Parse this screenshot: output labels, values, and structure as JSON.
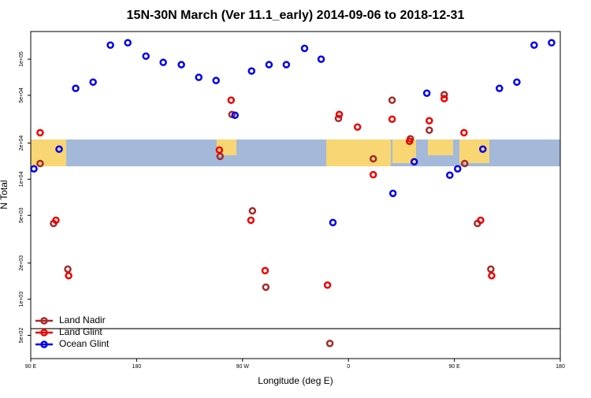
{
  "chart_data": {
    "type": "scatter",
    "title": "15N-30N March (Ver 11.1_early)   2014-09-06 to 2018-12-31",
    "x_label": "Longitude (deg E)",
    "y_label": "N Total",
    "xlim": [
      90,
      540
    ],
    "xticks": [
      {
        "value": 90,
        "label": "90 E"
      },
      {
        "value": 180,
        "label": "180"
      },
      {
        "value": 270,
        "label": "90 W"
      },
      {
        "value": 360,
        "label": "0"
      },
      {
        "value": 450,
        "label": "90 E"
      },
      {
        "value": 540,
        "label": "180"
      }
    ],
    "ylim": [
      320,
      170000
    ],
    "log_y": true,
    "yticks": [
      {
        "value": 500,
        "label": "5e+02"
      },
      {
        "value": 1000,
        "label": "1e+03"
      },
      {
        "value": 2000,
        "label": "2e+03"
      },
      {
        "value": 5000,
        "label": "5e+03"
      },
      {
        "value": 10000,
        "label": "1e+04"
      },
      {
        "value": 20000,
        "label": "2e+04"
      },
      {
        "value": 50000,
        "label": "5e+04"
      },
      {
        "value": 100000,
        "label": "1e+05"
      }
    ],
    "legend": "bottom-left",
    "series": [
      {
        "name": "Land Nadir",
        "color": "#a52a2a",
        "x": [
          98,
          109.4,
          121.5,
          250.9,
          261,
          278.4,
          289.8,
          344.2,
          351.5,
          381.1,
          397.1,
          412.6,
          428.7,
          441.4,
          458.8,
          469.6,
          481
        ],
        "values": [
          13500,
          4280,
          1780,
          15500,
          34600,
          5450,
          1260,
          428,
          32100,
          14800,
          45500,
          21700,
          25600,
          50600,
          13500,
          4280,
          1780
        ]
      },
      {
        "name": "Land Glint",
        "color": "#ee0000",
        "x": [
          98,
          111.4,
          122.2,
          250.3,
          260.3,
          277.1,
          289.2,
          342.2,
          352.2,
          367.7,
          381.1,
          397.1,
          411.9,
          428.7,
          441.4,
          458.2,
          472.3,
          481.7
        ],
        "values": [
          24400,
          4550,
          1570,
          17500,
          45500,
          4550,
          1730,
          1310,
          34600,
          27200,
          10900,
          31600,
          20700,
          30700,
          46900,
          24400,
          4550,
          1570
        ]
      },
      {
        "name": "Ocean Glint",
        "color": "#0000ee",
        "x": [
          92.7,
          114.1,
          128.2,
          143,
          157.7,
          172.5,
          187.9,
          202.6,
          218,
          232.8,
          247.5,
          263.6,
          277.7,
          292.5,
          307.2,
          322.7,
          336.8,
          346.8,
          397.8,
          415.9,
          426.6,
          446.1,
          452.8,
          474.2,
          488.3,
          503.1,
          517.8,
          532.6
        ],
        "values": [
          12200,
          17800,
          57100,
          64400,
          131000,
          137000,
          106000,
          94000,
          90000,
          70600,
          66400,
          34100,
          79700,
          90000,
          90000,
          123000,
          100000,
          4350,
          7620,
          13960,
          52100,
          10800,
          12200,
          17800,
          57100,
          64400,
          131000,
          137000
        ]
      }
    ]
  }
}
